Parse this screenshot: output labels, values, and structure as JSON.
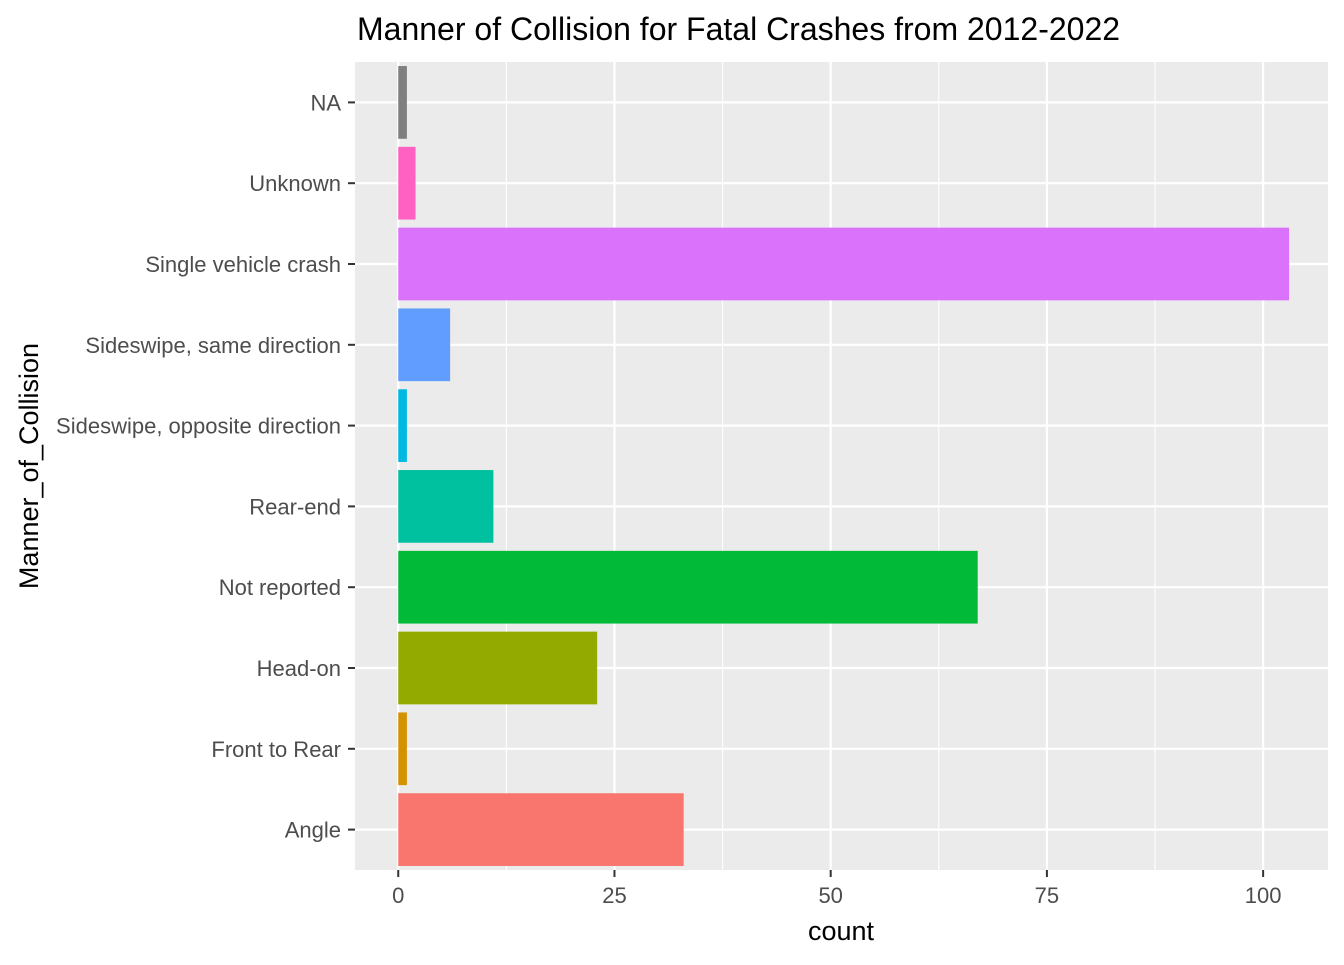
{
  "chart_data": {
    "type": "bar",
    "orientation": "horizontal",
    "title": "Manner of Collision for Fatal Crashes from 2012-2022",
    "xlabel": "count",
    "ylabel": "Manner_of_Collision",
    "categories": [
      "Angle",
      "Front to Rear",
      "Head-on",
      "Not reported",
      "Rear-end",
      "Sideswipe, opposite direction",
      "Sideswipe, same direction",
      "Single vehicle crash",
      "Unknown",
      "NA"
    ],
    "values": [
      33,
      1,
      23,
      67,
      11,
      1,
      6,
      103,
      2,
      1
    ],
    "colors": [
      "#F8766D",
      "#D39200",
      "#93AA00",
      "#00BA38",
      "#00C19F",
      "#00B9E3",
      "#619CFF",
      "#DB72FB",
      "#FF61C3",
      "#7F7F7F"
    ],
    "xlim": [
      -5,
      107.5
    ],
    "xticks": [
      0,
      25,
      50,
      75,
      100
    ],
    "grid": true,
    "legend": "none"
  }
}
